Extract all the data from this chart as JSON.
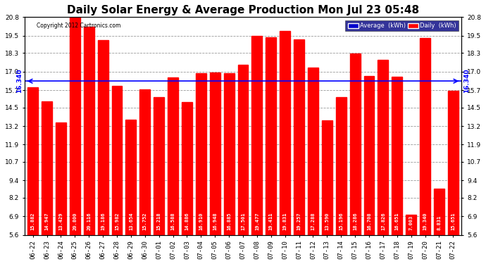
{
  "title": "Daily Solar Energy & Average Production Mon Jul 23 05:48",
  "copyright": "Copyright 2012 Cartronics.com",
  "categories": [
    "06-22",
    "06-23",
    "06-24",
    "06-25",
    "06-26",
    "06-27",
    "06-28",
    "06-29",
    "06-30",
    "07-01",
    "07-02",
    "07-03",
    "07-04",
    "07-05",
    "07-06",
    "07-07",
    "07-08",
    "07-09",
    "07-10",
    "07-11",
    "07-12",
    "07-13",
    "07-14",
    "07-15",
    "07-16",
    "07-17",
    "07-18",
    "07-19",
    "07-20",
    "07-21",
    "07-22"
  ],
  "values": [
    15.882,
    14.947,
    13.429,
    20.8,
    20.116,
    19.186,
    15.982,
    13.654,
    15.752,
    15.218,
    16.588,
    14.886,
    16.91,
    16.948,
    16.885,
    17.501,
    19.477,
    19.411,
    19.831,
    19.257,
    17.288,
    13.59,
    15.196,
    18.286,
    16.708,
    17.826,
    16.651,
    7.003,
    19.34,
    8.831,
    15.651
  ],
  "average": 16.34,
  "bar_color": "#ff0000",
  "avg_line_color": "#0000ff",
  "background_color": "#ffffff",
  "plot_bg_color": "#ffffff",
  "grid_color": "#999999",
  "ylim_min": 5.6,
  "ylim_max": 20.8,
  "yticks": [
    5.6,
    6.9,
    8.2,
    9.4,
    10.7,
    11.9,
    13.2,
    14.5,
    15.7,
    17.0,
    18.3,
    19.5,
    20.8
  ],
  "avg_label": "16.340",
  "legend_avg_bg": "#0000cc",
  "legend_daily_bg": "#ff0000",
  "title_fontsize": 11,
  "tick_fontsize": 6.5,
  "value_fontsize": 5.0,
  "bar_width": 0.75
}
